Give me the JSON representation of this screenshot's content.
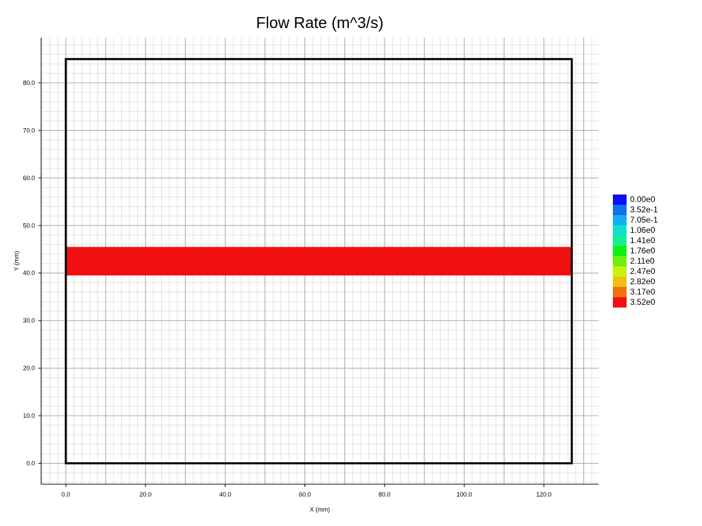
{
  "chart_data": {
    "type": "heatmap",
    "title": "Flow Rate (m^3/s)",
    "xlabel": "X (mm)",
    "ylabel": "Y (mm)",
    "xlim": [
      -6.2,
      133.7
    ],
    "ylim": [
      -4.4,
      89.5
    ],
    "x_ticks": [
      "0.0",
      "20.0",
      "40.0",
      "60.0",
      "80.0",
      "100.0",
      "120.0"
    ],
    "y_ticks": [
      "0.0",
      "10.0",
      "20.0",
      "30.0",
      "40.0",
      "50.0",
      "60.0",
      "70.0",
      "80.0"
    ],
    "grid": true,
    "legend_position": "right",
    "boundary": {
      "x": [
        0.0,
        127.0
      ],
      "y": [
        0.0,
        85.0
      ]
    },
    "regions": [
      {
        "x": [
          0.0,
          127.0
        ],
        "y": [
          39.5,
          45.5
        ],
        "value": 3.52,
        "color": "#f01010"
      }
    ],
    "colorbar": [
      {
        "label": "0.00e0",
        "color": "#1010f0"
      },
      {
        "label": "3.52e-1",
        "color": "#1070f0"
      },
      {
        "label": "7.05e-1",
        "color": "#10b0f0"
      },
      {
        "label": "1.06e0",
        "color": "#10e0d0"
      },
      {
        "label": "1.41e0",
        "color": "#10f090"
      },
      {
        "label": "1.76e0",
        "color": "#10f010"
      },
      {
        "label": "2.11e0",
        "color": "#70f010"
      },
      {
        "label": "2.47e0",
        "color": "#c8f010"
      },
      {
        "label": "2.82e0",
        "color": "#f0c010"
      },
      {
        "label": "3.17e0",
        "color": "#f07010"
      },
      {
        "label": "3.52e0",
        "color": "#f01010"
      }
    ]
  }
}
